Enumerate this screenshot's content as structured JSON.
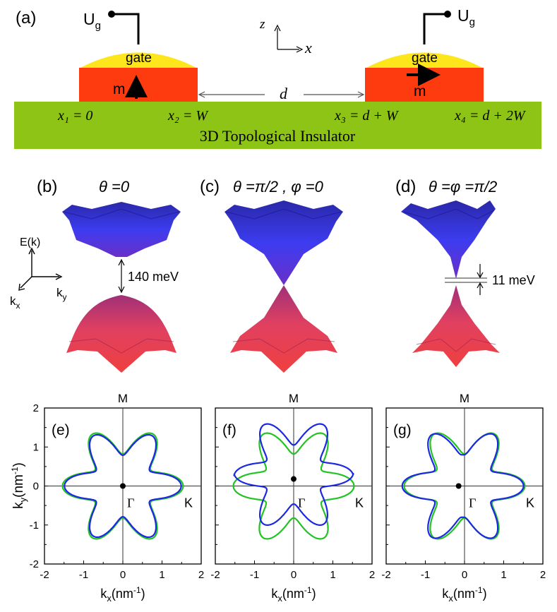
{
  "panel_a": {
    "label": "(a)",
    "ug_left": "U",
    "ug_left_sub": "g",
    "ug_right": "U",
    "ug_right_sub": "g",
    "gate_left": "gate",
    "gate_right": "gate",
    "m_left": "m",
    "m_right": "m",
    "axis_z": "z",
    "axis_x": "x",
    "d_label": "d",
    "x1": "x₁ = 0",
    "x2": "x₂ = W",
    "x3": "x₃ = d + W",
    "x4": "x₄ = d + 2W",
    "substrate": "3D Topological Insulator",
    "colors": {
      "gate": "#fde61b",
      "magnet": "#fe3b0f",
      "substrate": "#8dc415"
    }
  },
  "panel_b": {
    "label": "(b)",
    "title": "θ =0",
    "gap": "140 meV",
    "axis_e": "E(k)",
    "axis_kx": "k",
    "axis_kx_sub": "x",
    "axis_ky": "k",
    "axis_ky_sub": "y"
  },
  "panel_c": {
    "label": "(c)",
    "title": "θ =π/2 , φ =0"
  },
  "panel_d": {
    "label": "(d)",
    "title": "θ =φ =π/2",
    "gap": "11 meV"
  },
  "chart_common": {
    "xlabel": "k",
    "xlabel_sub": "x",
    "xunit": "(nm",
    "xunit_sup": "-1",
    "xunit_end": ")",
    "ylabel": "k",
    "ylabel_sub": "y",
    "yunit": "(nm",
    "yunit_sup": "-1",
    "yunit_end": ")",
    "M": "M",
    "K": "K",
    "Gamma": "Γ"
  },
  "chart_data": [
    {
      "type": "line",
      "panel": "(e)",
      "title": "(e)",
      "xlim": [
        -2,
        2
      ],
      "ylim": [
        -2,
        2
      ],
      "xticks": [
        "-2",
        "-1",
        "0",
        "1",
        "2"
      ],
      "yticks": [
        "2",
        "1",
        "0",
        "-1",
        "-2"
      ],
      "xlabel": "kx(nm-1)",
      "ylabel": "ky(nm-1)",
      "annotations": [
        "M",
        "K",
        "Γ"
      ],
      "gamma_point": [
        0,
        0
      ],
      "series": [
        {
          "name": "green",
          "color": "#22c322",
          "R0": 1.18,
          "amp": 0.36,
          "ky_shift": 0.0,
          "kx_scale": 1.0
        },
        {
          "name": "blue",
          "color": "#1c28e2",
          "R0": 1.14,
          "amp": 0.35,
          "ky_shift": 0.0,
          "kx_scale": 1.0
        }
      ]
    },
    {
      "type": "line",
      "panel": "(f)",
      "title": "(f)",
      "xlim": [
        -2,
        2
      ],
      "ylim": [
        -2,
        2
      ],
      "xticks": [
        "-2",
        "-1",
        "0",
        "1",
        "2"
      ],
      "yticks": [
        "2",
        "1",
        "0",
        "-1",
        "-2"
      ],
      "xlabel": "kx(nm-1)",
      "ylabel": "ky(nm-1)",
      "annotations": [
        "M",
        "K",
        "Γ"
      ],
      "gamma_point": [
        0,
        0.18
      ],
      "series": [
        {
          "name": "green",
          "color": "#22c322",
          "R0": 1.18,
          "amp": 0.36,
          "ky_shift": 0.0,
          "kx_scale": 1.0
        },
        {
          "name": "blue",
          "color": "#1c28e2",
          "R0": 1.16,
          "amp": 0.36,
          "ky_shift": 0.28,
          "kx_scale": 1.0
        }
      ]
    },
    {
      "type": "line",
      "panel": "(g)",
      "title": "(g)",
      "xlim": [
        -2,
        2
      ],
      "ylim": [
        -2,
        2
      ],
      "xticks": [
        "-2",
        "-1",
        "0",
        "1",
        "2"
      ],
      "yticks": [
        "2",
        "1",
        "0",
        "-1",
        "-2"
      ],
      "xlabel": "kx(nm-1)",
      "ylabel": "ky(nm-1)",
      "annotations": [
        "M",
        "K",
        "Γ"
      ],
      "gamma_point": [
        -0.15,
        0
      ],
      "series": [
        {
          "name": "green",
          "color": "#22c322",
          "R0": 1.18,
          "amp": 0.36,
          "ky_shift": 0.0,
          "kx_scale": 1.0
        },
        {
          "name": "blue",
          "color": "#1c28e2",
          "R0": 1.16,
          "amp": 0.36,
          "ky_shift": 0.0,
          "kx_shift": -0.2
        }
      ]
    }
  ]
}
